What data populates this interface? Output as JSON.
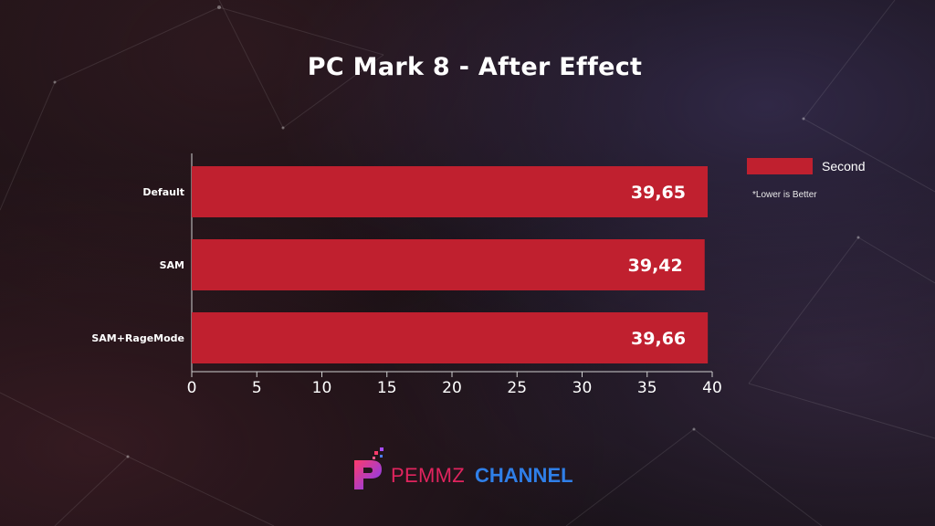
{
  "chart_data": {
    "type": "bar",
    "orientation": "horizontal",
    "title": "PC Mark 8 - After Effect",
    "categories": [
      "Default",
      "SAM",
      "SAM+RageMode"
    ],
    "series": [
      {
        "name": "Second",
        "values": [
          39.65,
          39.42,
          39.66
        ],
        "labels": [
          "39,65",
          "39,42",
          "39,66"
        ]
      }
    ],
    "xlim": [
      0,
      40
    ],
    "xticks": [
      0,
      5,
      10,
      15,
      20,
      25,
      30,
      35,
      40
    ],
    "xlabel": "",
    "ylabel": "",
    "grid": false,
    "legend_position": "right",
    "note": "*Lower is Better",
    "bar_color": "#c0202f"
  },
  "brand": {
    "name_part1": "PEMMZ",
    "name_part2": "CHANNEL",
    "color1": "#e0245e",
    "color2": "#2f7fe8",
    "icon": "pemmz-logo-icon"
  }
}
